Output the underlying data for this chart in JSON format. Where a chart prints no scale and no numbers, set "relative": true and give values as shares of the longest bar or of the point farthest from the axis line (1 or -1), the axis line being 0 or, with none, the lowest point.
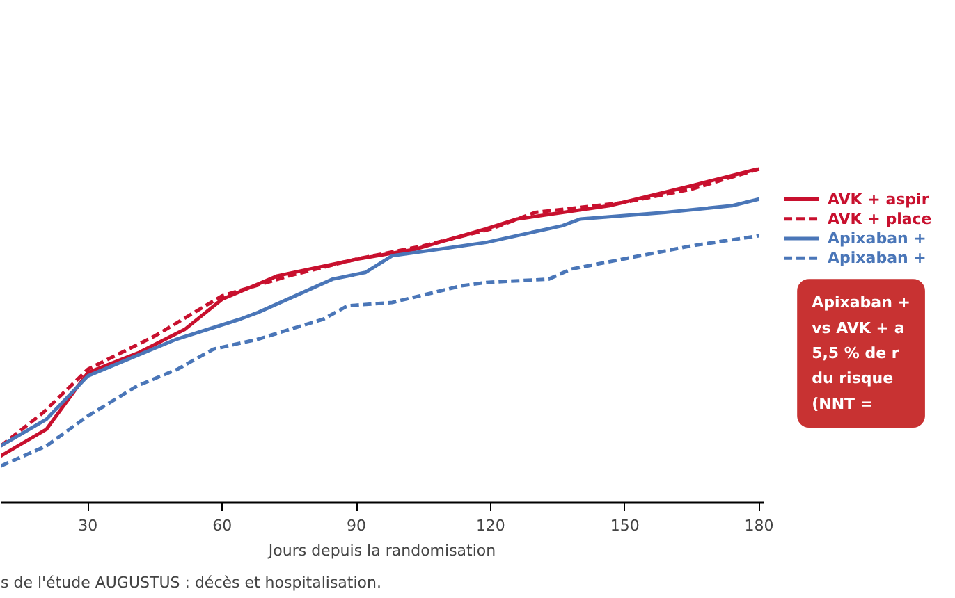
{
  "chart_data": {
    "type": "line",
    "relative": true,
    "xlabel": "Jours depuis la randomisation",
    "xlim": [
      10.5,
      181
    ],
    "xticks": [
      30,
      60,
      90,
      120,
      150,
      180
    ],
    "grid": false,
    "legend": "right",
    "series": [
      {
        "name": "AVK + aspir",
        "color": "#c8102e",
        "line_style": "solid",
        "x": [
          10.5,
          20.7,
          30,
          41.4,
          51.7,
          60,
          72.4,
          90.3,
          103.3,
          118.8,
          125.9,
          146.6,
          165,
          179.7
        ],
        "values": [
          0.14,
          0.22,
          0.39,
          0.45,
          0.52,
          0.61,
          0.68,
          0.73,
          0.76,
          0.82,
          0.85,
          0.89,
          0.95,
          1.0
        ]
      },
      {
        "name": "AVK + place",
        "color": "#c8102e",
        "line_style": "dashed",
        "x": [
          10.5,
          20,
          30,
          45,
          60,
          75,
          90,
          105,
          120,
          130,
          150,
          165,
          180
        ],
        "values": [
          0.17,
          0.27,
          0.4,
          0.5,
          0.62,
          0.68,
          0.73,
          0.77,
          0.82,
          0.87,
          0.9,
          0.94,
          1.0
        ]
      },
      {
        "name": "Apixaban +",
        "color": "#4a76b8",
        "line_style": "solid",
        "x": [
          10.5,
          20.7,
          30,
          49.8,
          64,
          68,
          84.7,
          92,
          98,
          108.6,
          119,
          136,
          140,
          159,
          174,
          180
        ],
        "values": [
          0.17,
          0.25,
          0.38,
          0.49,
          0.55,
          0.57,
          0.67,
          0.69,
          0.74,
          0.76,
          0.78,
          0.83,
          0.85,
          0.87,
          0.89,
          0.91
        ]
      },
      {
        "name": "Apixaban +",
        "color": "#4a76b8",
        "line_style": "dashed",
        "x": [
          10.5,
          20.7,
          30,
          41,
          50,
          58,
          68,
          82.6,
          88,
          98,
          113.5,
          119,
          133,
          138,
          165,
          180
        ],
        "values": [
          0.11,
          0.17,
          0.26,
          0.35,
          0.4,
          0.46,
          0.49,
          0.55,
          0.59,
          0.6,
          0.65,
          0.66,
          0.67,
          0.7,
          0.77,
          0.8
        ]
      }
    ],
    "annotations": [
      "Apixaban +\nvs AVK + a\n5,5 % de r\ndu risque\n(NNT =",
      "s de l'étude AUGUSTUS : décès et hospitalisation."
    ]
  }
}
